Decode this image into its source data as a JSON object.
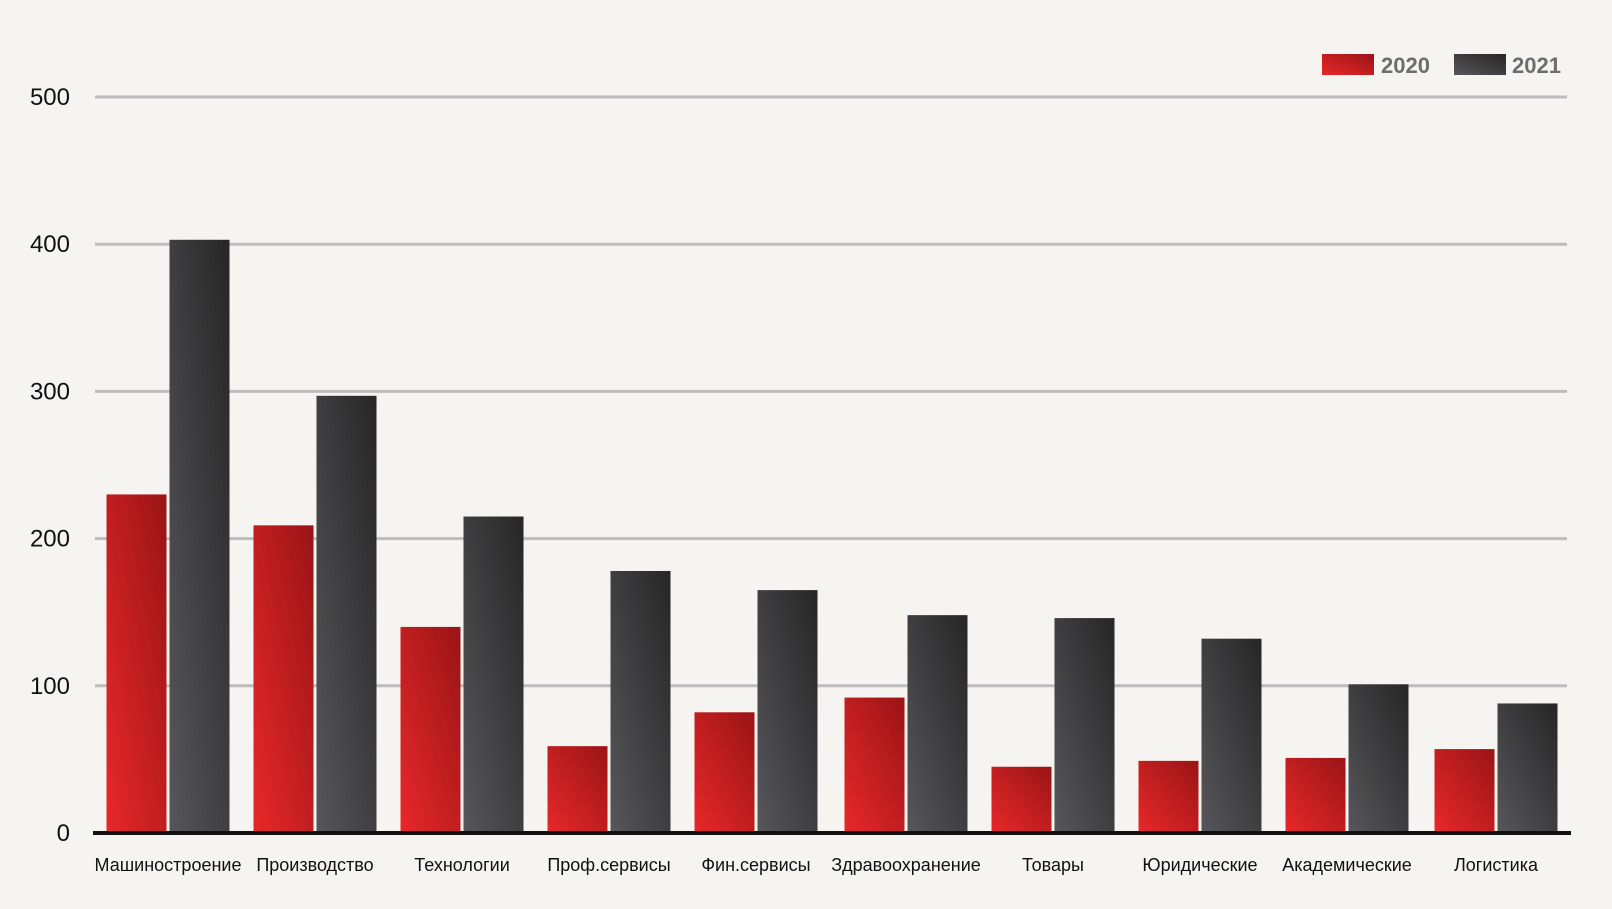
{
  "colors": {
    "background": "#f5f4f0",
    "grid": "#bdbdbd",
    "axis": "#111111",
    "series_2020_light": "#e8282a",
    "series_2020_dark": "#9a1416",
    "series_2021_light": "#57575b",
    "series_2021_dark": "#262626"
  },
  "chart_data": {
    "type": "bar",
    "title": "",
    "xlabel": "",
    "ylabel": "",
    "ylim": [
      0,
      500
    ],
    "yticks": [
      0,
      100,
      200,
      300,
      400,
      500
    ],
    "grid": true,
    "legend_position": "top-right",
    "categories": [
      "Машиностроение",
      "Производство",
      "Технологии",
      "Проф.сервисы",
      "Фин.сервисы",
      "Здравоохранение",
      "Товары",
      "Юридические",
      "Академические",
      "Логистика"
    ],
    "series": [
      {
        "name": "2020",
        "values": [
          230,
          209,
          140,
          59,
          82,
          92,
          45,
          49,
          51,
          57
        ]
      },
      {
        "name": "2021",
        "values": [
          403,
          297,
          215,
          178,
          165,
          148,
          146,
          132,
          101,
          88
        ]
      }
    ]
  }
}
